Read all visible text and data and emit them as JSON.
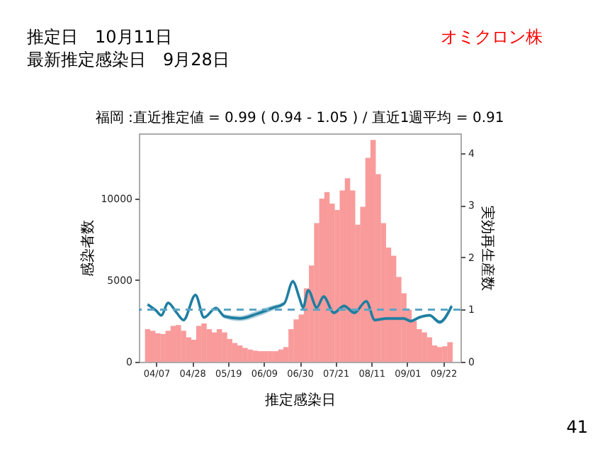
{
  "chart_data": {
    "type": "bar",
    "title": "福岡 :直近推定値 = 0.99 ( 0.94 - 1.05 ) / 直近1週平均 = 0.91",
    "xlabel": "推定感染日",
    "ylabel": "感染者数",
    "y2label": "実効再生産数",
    "annotations": [
      "推定日　10月11日",
      "最新推定感染日　9月28日",
      "オミクロン株",
      "41"
    ],
    "x": [
      "--04-02",
      "--04-05",
      "--04-08",
      "--04-11",
      "--04-14",
      "--04-17",
      "--04-20",
      "--04-23",
      "--04-26",
      "--04-29",
      "--05-02",
      "--05-05",
      "--05-08",
      "--05-11",
      "--05-14",
      "--05-17",
      "--05-20",
      "--05-23",
      "--05-26",
      "--05-29",
      "--06-01",
      "--06-04",
      "--06-07",
      "--06-10",
      "--06-13",
      "--06-16",
      "--06-19",
      "--06-22",
      "--06-25",
      "--06-28",
      "--07-01",
      "--07-04",
      "--07-07",
      "--07-10",
      "--07-13",
      "--07-16",
      "--07-19",
      "--07-22",
      "--07-25",
      "--07-28",
      "--07-31",
      "--08-03",
      "--08-06",
      "--08-09",
      "--08-12",
      "--08-15",
      "--08-18",
      "--08-21",
      "--08-24",
      "--08-27",
      "--08-30",
      "--09-02",
      "--09-05",
      "--09-08",
      "--09-11",
      "--09-14",
      "--09-17",
      "--09-20",
      "--09-23",
      "--09-26"
    ],
    "series": [
      {
        "color": "#f99b9b",
        "values": [
          2000,
          1900,
          1750,
          1700,
          1900,
          2200,
          2250,
          1900,
          1500,
          1350,
          2200,
          2350,
          2000,
          1800,
          2000,
          1800,
          1400,
          1150,
          1000,
          850,
          750,
          680,
          650,
          650,
          650,
          650,
          750,
          900,
          2000,
          2600,
          2900,
          4500,
          5900,
          8500,
          10000,
          10400,
          9700,
          9300,
          10500,
          11250,
          10500,
          8400,
          9500,
          12500,
          13600,
          11500,
          8500,
          7000,
          6500,
          5200,
          4200,
          3200,
          2500,
          2000,
          1800,
          1500,
          1000,
          900,
          950,
          1200
        ]
      },
      {
        "type": "line",
        "axis": "y2",
        "color": "#1f7ea1",
        "line_style": "solid",
        "x": [
          "--04-02",
          "--04-07",
          "--04-10",
          "--04-14",
          "--04-19",
          "--04-23",
          "--04-30",
          "--05-05",
          "--05-12",
          "--05-17",
          "--05-26",
          "--06-05",
          "--06-14",
          "--06-21",
          "--06-26",
          "--06-30",
          "--07-02",
          "--07-05",
          "--07-10",
          "--07-14",
          "--07-20",
          "--07-26",
          "--08-01",
          "--08-08",
          "--08-13",
          "--08-20",
          "--08-30",
          "--09-03",
          "--09-08",
          "--09-14",
          "--09-20",
          "--09-27"
        ],
        "values": [
          1.1,
          0.98,
          0.89,
          1.13,
          0.94,
          0.8,
          1.28,
          0.85,
          1.03,
          0.87,
          0.83,
          0.92,
          1.03,
          1.12,
          1.54,
          1.21,
          1.04,
          1.37,
          1.04,
          1.25,
          0.94,
          1.07,
          0.94,
          1.16,
          0.8,
          0.83,
          0.83,
          0.78,
          0.85,
          0.89,
          0.76,
          1.07
        ],
        "lower": [
          1.07,
          0.95,
          0.86,
          1.1,
          0.91,
          0.77,
          1.25,
          0.82,
          1.0,
          0.83,
          0.78,
          0.86,
          0.98,
          1.08,
          1.5,
          1.18,
          1.01,
          1.34,
          1.01,
          1.22,
          0.91,
          1.04,
          0.91,
          1.13,
          0.77,
          0.8,
          0.8,
          0.75,
          0.82,
          0.86,
          0.72,
          1.02
        ],
        "upper": [
          1.13,
          1.01,
          0.92,
          1.16,
          0.97,
          0.83,
          1.31,
          0.88,
          1.06,
          0.91,
          0.88,
          0.98,
          1.08,
          1.16,
          1.58,
          1.24,
          1.07,
          1.4,
          1.07,
          1.28,
          0.97,
          1.1,
          0.97,
          1.19,
          0.83,
          0.86,
          0.86,
          0.81,
          0.88,
          0.92,
          0.8,
          1.12
        ]
      }
    ],
    "xlim": [
      "--04-01",
      "--09-28"
    ],
    "xticks": [
      {
        "value": "--04-07",
        "label": "04/07"
      },
      {
        "value": "--04-28",
        "label": "04/28"
      },
      {
        "value": "--05-19",
        "label": "05/19"
      },
      {
        "value": "--06-09",
        "label": "06/09"
      },
      {
        "value": "--06-30",
        "label": "06/30"
      },
      {
        "value": "--07-21",
        "label": "07/21"
      },
      {
        "value": "--08-11",
        "label": "08/11"
      },
      {
        "value": "--09-01",
        "label": "09/01"
      },
      {
        "value": "--09-22",
        "label": "09/22"
      }
    ],
    "ylim": [
      0,
      14000
    ],
    "yticks": [
      0,
      5000,
      10000
    ],
    "y2lim": [
      0,
      4.38
    ],
    "y2ticks": [
      0,
      1,
      2,
      3,
      4
    ],
    "ref_lines": [
      {
        "axis": "y2",
        "value": 1,
        "color": "#5aa5c5",
        "line_style": "dashed"
      }
    ]
  }
}
